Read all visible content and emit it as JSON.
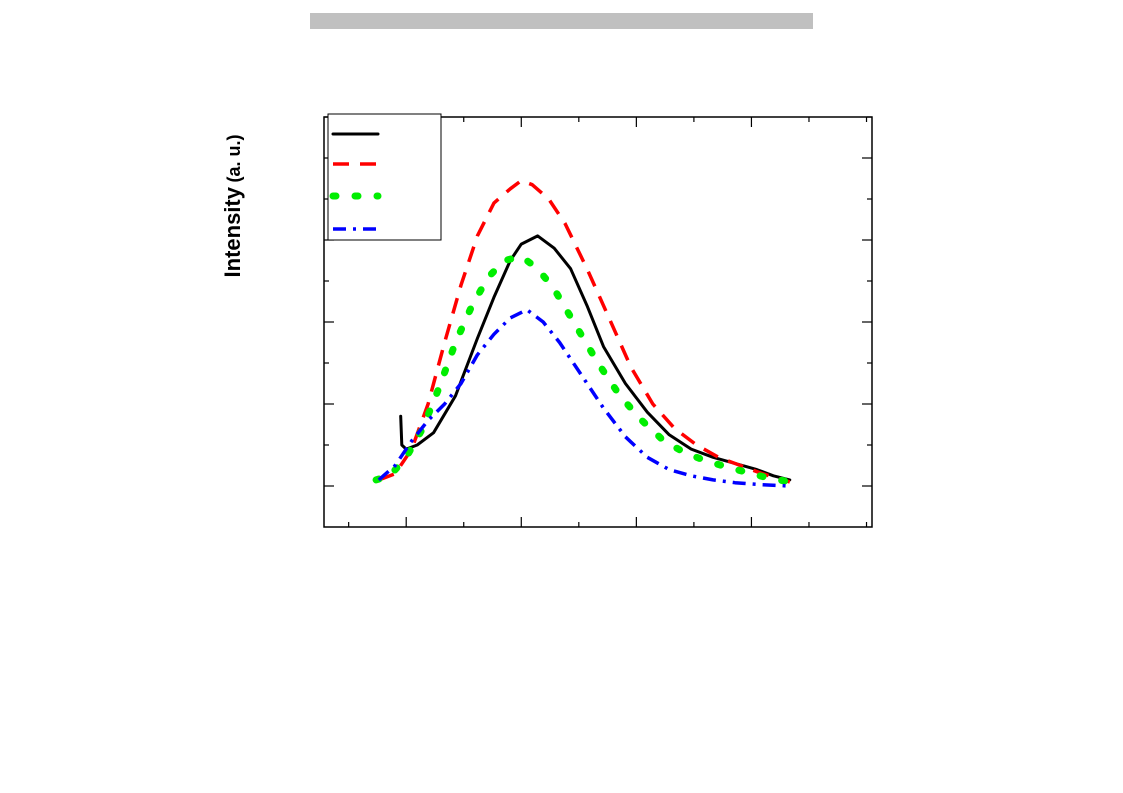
{
  "chart_data": {
    "type": "line",
    "ylabel_main": "Intensity",
    "ylabel_unit": "(a. u.)",
    "xlim": [
      0,
      10
    ],
    "ylim": [
      0,
      10
    ],
    "x_major_ticks": [
      1.5,
      3.6,
      5.7,
      7.8
    ],
    "y_major_ticks": [
      1,
      3,
      5,
      7,
      9
    ],
    "legend_position": "top-left",
    "series": [
      {
        "color": "#000000",
        "style": "solid",
        "points": [
          [
            1.4,
            2.7
          ],
          [
            1.42,
            2.0
          ],
          [
            1.5,
            1.9
          ],
          [
            1.7,
            2.0
          ],
          [
            2.0,
            2.3
          ],
          [
            2.4,
            3.2
          ],
          [
            2.8,
            4.6
          ],
          [
            3.1,
            5.6
          ],
          [
            3.4,
            6.5
          ],
          [
            3.6,
            6.9
          ],
          [
            3.9,
            7.1
          ],
          [
            4.2,
            6.8
          ],
          [
            4.5,
            6.3
          ],
          [
            4.8,
            5.4
          ],
          [
            5.1,
            4.4
          ],
          [
            5.5,
            3.5
          ],
          [
            5.9,
            2.8
          ],
          [
            6.3,
            2.25
          ],
          [
            6.7,
            1.9
          ],
          [
            7.1,
            1.7
          ],
          [
            7.5,
            1.55
          ],
          [
            7.9,
            1.4
          ],
          [
            8.2,
            1.25
          ],
          [
            8.5,
            1.15
          ]
        ]
      },
      {
        "color": "#ff0000",
        "style": "dashed",
        "points": [
          [
            1.0,
            1.15
          ],
          [
            1.3,
            1.3
          ],
          [
            1.6,
            1.9
          ],
          [
            1.9,
            3.0
          ],
          [
            2.2,
            4.5
          ],
          [
            2.5,
            5.9
          ],
          [
            2.8,
            7.1
          ],
          [
            3.1,
            7.9
          ],
          [
            3.4,
            8.25
          ],
          [
            3.6,
            8.45
          ],
          [
            3.8,
            8.35
          ],
          [
            4.1,
            8.0
          ],
          [
            4.4,
            7.4
          ],
          [
            4.8,
            6.3
          ],
          [
            5.2,
            5.1
          ],
          [
            5.6,
            3.9
          ],
          [
            6.0,
            3.0
          ],
          [
            6.4,
            2.4
          ],
          [
            6.8,
            2.0
          ],
          [
            7.2,
            1.7
          ],
          [
            7.6,
            1.5
          ],
          [
            8.0,
            1.3
          ],
          [
            8.5,
            1.1
          ]
        ]
      },
      {
        "color": "#00ee00",
        "style": "dotted",
        "points": [
          [
            0.95,
            1.15
          ],
          [
            1.2,
            1.25
          ],
          [
            1.5,
            1.7
          ],
          [
            1.8,
            2.4
          ],
          [
            2.1,
            3.4
          ],
          [
            2.4,
            4.5
          ],
          [
            2.7,
            5.4
          ],
          [
            3.0,
            6.1
          ],
          [
            3.3,
            6.5
          ],
          [
            3.6,
            6.6
          ],
          [
            3.9,
            6.3
          ],
          [
            4.2,
            5.8
          ],
          [
            4.6,
            4.9
          ],
          [
            5.0,
            4.0
          ],
          [
            5.4,
            3.2
          ],
          [
            5.8,
            2.6
          ],
          [
            6.2,
            2.1
          ],
          [
            6.6,
            1.8
          ],
          [
            7.0,
            1.6
          ],
          [
            7.4,
            1.45
          ],
          [
            7.8,
            1.3
          ],
          [
            8.1,
            1.2
          ],
          [
            8.5,
            1.1
          ]
        ]
      },
      {
        "color": "#0000ff",
        "style": "dashdot",
        "points": [
          [
            1.0,
            1.15
          ],
          [
            1.3,
            1.5
          ],
          [
            1.6,
            2.1
          ],
          [
            1.9,
            2.6
          ],
          [
            2.2,
            3.0
          ],
          [
            2.5,
            3.5
          ],
          [
            2.8,
            4.2
          ],
          [
            3.1,
            4.7
          ],
          [
            3.4,
            5.1
          ],
          [
            3.7,
            5.3
          ],
          [
            4.0,
            5.0
          ],
          [
            4.3,
            4.5
          ],
          [
            4.7,
            3.7
          ],
          [
            5.1,
            2.9
          ],
          [
            5.5,
            2.2
          ],
          [
            5.9,
            1.7
          ],
          [
            6.3,
            1.4
          ],
          [
            6.7,
            1.25
          ],
          [
            7.1,
            1.15
          ],
          [
            7.5,
            1.08
          ],
          [
            8.0,
            1.03
          ],
          [
            8.5,
            1.0
          ]
        ]
      }
    ]
  }
}
